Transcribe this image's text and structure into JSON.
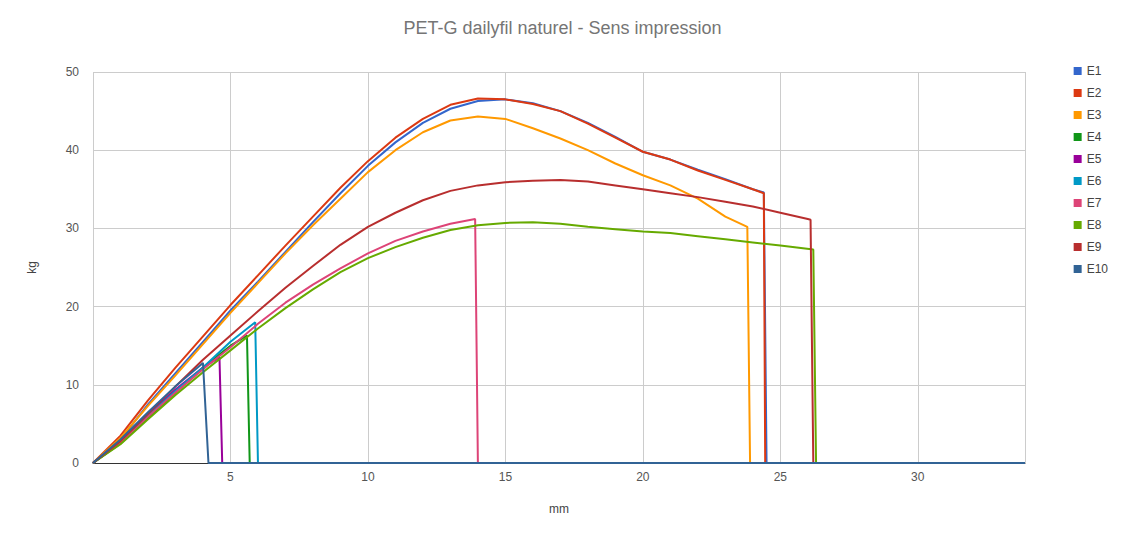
{
  "chart_data": {
    "type": "line",
    "title": "PET-G dailyfil naturel - Sens impression",
    "x_label": "mm",
    "y_label": "kg",
    "xlim": [
      0,
      33.9
    ],
    "xticks": [
      5,
      10,
      15,
      20,
      25,
      30
    ],
    "ylim": [
      0,
      50
    ],
    "yticks": [
      0,
      10,
      20,
      30,
      40,
      50
    ],
    "grid": true,
    "legend": "right",
    "marker": "none",
    "series": [
      {
        "name": "E1",
        "color": "#3366cc",
        "x": [
          0,
          1,
          2,
          3,
          4,
          5,
          6,
          7,
          8,
          9,
          10,
          11,
          12,
          13,
          14,
          15,
          16,
          17,
          18,
          19,
          20,
          21,
          22,
          23,
          24,
          24.4,
          24.5,
          33.9
        ],
        "values": [
          0,
          3,
          7.5,
          11.5,
          15.5,
          19.5,
          23.2,
          27,
          30.8,
          34.5,
          38,
          41,
          43.5,
          45.3,
          46.3,
          46.5,
          46,
          45,
          43.5,
          41.7,
          39.8,
          38.8,
          37.5,
          36.3,
          35,
          34.6,
          0,
          0
        ]
      },
      {
        "name": "E2",
        "color": "#dc3912",
        "x": [
          0,
          1,
          2,
          3,
          4,
          5,
          6,
          7,
          8,
          9,
          10,
          11,
          12,
          13,
          14,
          15,
          16,
          17,
          18,
          19,
          20,
          21,
          22,
          23,
          24,
          24.4,
          24.45,
          33.9
        ],
        "values": [
          0,
          3.5,
          8,
          12.2,
          16.2,
          20.2,
          24,
          27.8,
          31.5,
          35.2,
          38.6,
          41.6,
          44,
          45.8,
          46.6,
          46.5,
          45.9,
          45,
          43.4,
          41.6,
          39.8,
          38.8,
          37.4,
          36.2,
          35,
          34.5,
          0,
          0
        ]
      },
      {
        "name": "E3",
        "color": "#ff9900",
        "x": [
          0,
          1,
          2,
          3,
          4,
          5,
          6,
          7,
          8,
          9,
          10,
          11,
          12,
          13,
          14,
          15,
          16,
          17,
          18,
          19,
          20,
          21,
          22,
          23,
          23.8,
          23.9,
          33.9
        ],
        "values": [
          0,
          3.2,
          7.3,
          11.2,
          15.2,
          19.2,
          23,
          26.8,
          30.4,
          33.8,
          37.2,
          40,
          42.3,
          43.8,
          44.3,
          44,
          42.8,
          41.5,
          40,
          38.3,
          36.8,
          35.5,
          33.8,
          31.5,
          30.2,
          0,
          0
        ]
      },
      {
        "name": "E4",
        "color": "#109618",
        "x": [
          0,
          1,
          2,
          3,
          4,
          5,
          5.6,
          5.7,
          33.9
        ],
        "values": [
          0,
          2.5,
          5.8,
          9,
          12.2,
          15,
          16.3,
          0,
          0
        ]
      },
      {
        "name": "E5",
        "color": "#990099",
        "x": [
          0,
          1,
          2,
          3,
          4,
          4.6,
          4.7,
          33.9
        ],
        "values": [
          0,
          2.8,
          6.2,
          9.4,
          12.2,
          13.5,
          0,
          0
        ]
      },
      {
        "name": "E6",
        "color": "#0099c6",
        "x": [
          0,
          1,
          2,
          3,
          4,
          5,
          5.9,
          6,
          33.9
        ],
        "values": [
          0,
          2.6,
          6,
          9.2,
          12.2,
          15.5,
          18,
          0,
          0
        ]
      },
      {
        "name": "E7",
        "color": "#dd4477",
        "x": [
          0,
          1,
          2,
          3,
          4,
          5,
          6,
          7,
          8,
          9,
          10,
          11,
          12,
          13,
          13.9,
          14,
          33.9
        ],
        "values": [
          0,
          2.6,
          5.9,
          9,
          12,
          14.8,
          17.8,
          20.5,
          22.8,
          24.9,
          26.8,
          28.4,
          29.6,
          30.6,
          31.2,
          0,
          0
        ]
      },
      {
        "name": "E8",
        "color": "#66aa00",
        "x": [
          0,
          1,
          2,
          3,
          4,
          5,
          6,
          7,
          8,
          9,
          10,
          11,
          12,
          13,
          14,
          15,
          16,
          17,
          18,
          19,
          20,
          21,
          22,
          23,
          24,
          25,
          26.2,
          26.3,
          33.9
        ],
        "values": [
          0,
          2.4,
          5.6,
          8.7,
          11.6,
          14.4,
          17.2,
          19.8,
          22.2,
          24.4,
          26.2,
          27.6,
          28.8,
          29.8,
          30.4,
          30.7,
          30.8,
          30.6,
          30.2,
          29.9,
          29.6,
          29.4,
          29,
          28.6,
          28.2,
          27.8,
          27.3,
          0,
          0
        ]
      },
      {
        "name": "E9",
        "color": "#b82e2e",
        "x": [
          0,
          1,
          2,
          3,
          4,
          5,
          6,
          7,
          8,
          9,
          10,
          11,
          12,
          13,
          14,
          15,
          16,
          17,
          18,
          19,
          20,
          21,
          22,
          23,
          24,
          25,
          26,
          26.1,
          26.2,
          33.9
        ],
        "values": [
          0,
          2.8,
          6.3,
          9.8,
          13.2,
          16.3,
          19.4,
          22.4,
          25.2,
          27.9,
          30.2,
          32,
          33.6,
          34.8,
          35.5,
          35.9,
          36.1,
          36.2,
          36,
          35.5,
          35,
          34.5,
          34,
          33.4,
          32.8,
          32,
          31.2,
          31.1,
          0,
          0
        ]
      },
      {
        "name": "E10",
        "color": "#316395",
        "x": [
          0,
          1,
          2,
          3,
          4,
          4.2,
          33.9
        ],
        "values": [
          0,
          3,
          6.5,
          9.8,
          12.8,
          0,
          0
        ]
      }
    ]
  }
}
